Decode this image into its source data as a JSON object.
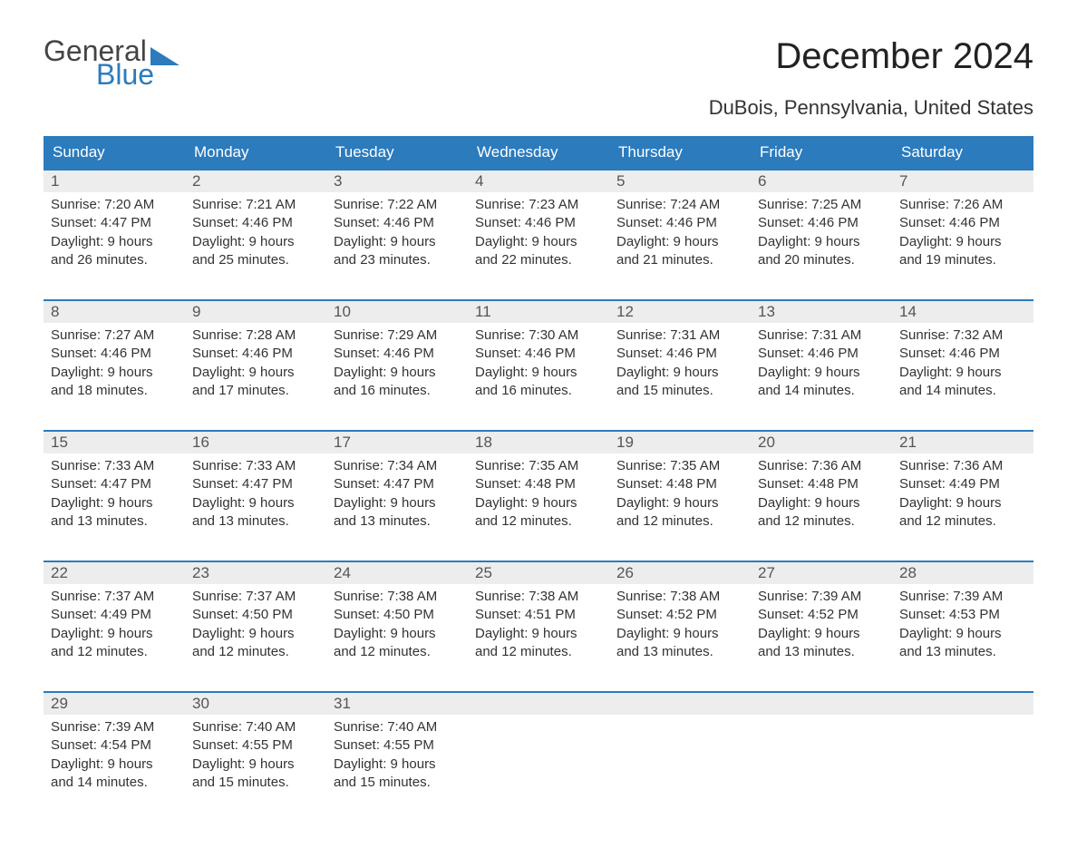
{
  "logo": {
    "text_general": "General",
    "text_blue": "Blue"
  },
  "title": "December 2024",
  "subtitle": "DuBois, Pennsylvania, United States",
  "colors": {
    "header_bg": "#2b7bbd",
    "header_text": "#ffffff",
    "daynum_bg": "#ededed",
    "divider": "#2b7bbd",
    "body_text": "#333333",
    "background": "#ffffff"
  },
  "days_of_week": [
    "Sunday",
    "Monday",
    "Tuesday",
    "Wednesday",
    "Thursday",
    "Friday",
    "Saturday"
  ],
  "weeks": [
    [
      {
        "num": "1",
        "sunrise": "Sunrise: 7:20 AM",
        "sunset": "Sunset: 4:47 PM",
        "daylight": "Daylight: 9 hours and 26 minutes."
      },
      {
        "num": "2",
        "sunrise": "Sunrise: 7:21 AM",
        "sunset": "Sunset: 4:46 PM",
        "daylight": "Daylight: 9 hours and 25 minutes."
      },
      {
        "num": "3",
        "sunrise": "Sunrise: 7:22 AM",
        "sunset": "Sunset: 4:46 PM",
        "daylight": "Daylight: 9 hours and 23 minutes."
      },
      {
        "num": "4",
        "sunrise": "Sunrise: 7:23 AM",
        "sunset": "Sunset: 4:46 PM",
        "daylight": "Daylight: 9 hours and 22 minutes."
      },
      {
        "num": "5",
        "sunrise": "Sunrise: 7:24 AM",
        "sunset": "Sunset: 4:46 PM",
        "daylight": "Daylight: 9 hours and 21 minutes."
      },
      {
        "num": "6",
        "sunrise": "Sunrise: 7:25 AM",
        "sunset": "Sunset: 4:46 PM",
        "daylight": "Daylight: 9 hours and 20 minutes."
      },
      {
        "num": "7",
        "sunrise": "Sunrise: 7:26 AM",
        "sunset": "Sunset: 4:46 PM",
        "daylight": "Daylight: 9 hours and 19 minutes."
      }
    ],
    [
      {
        "num": "8",
        "sunrise": "Sunrise: 7:27 AM",
        "sunset": "Sunset: 4:46 PM",
        "daylight": "Daylight: 9 hours and 18 minutes."
      },
      {
        "num": "9",
        "sunrise": "Sunrise: 7:28 AM",
        "sunset": "Sunset: 4:46 PM",
        "daylight": "Daylight: 9 hours and 17 minutes."
      },
      {
        "num": "10",
        "sunrise": "Sunrise: 7:29 AM",
        "sunset": "Sunset: 4:46 PM",
        "daylight": "Daylight: 9 hours and 16 minutes."
      },
      {
        "num": "11",
        "sunrise": "Sunrise: 7:30 AM",
        "sunset": "Sunset: 4:46 PM",
        "daylight": "Daylight: 9 hours and 16 minutes."
      },
      {
        "num": "12",
        "sunrise": "Sunrise: 7:31 AM",
        "sunset": "Sunset: 4:46 PM",
        "daylight": "Daylight: 9 hours and 15 minutes."
      },
      {
        "num": "13",
        "sunrise": "Sunrise: 7:31 AM",
        "sunset": "Sunset: 4:46 PM",
        "daylight": "Daylight: 9 hours and 14 minutes."
      },
      {
        "num": "14",
        "sunrise": "Sunrise: 7:32 AM",
        "sunset": "Sunset: 4:46 PM",
        "daylight": "Daylight: 9 hours and 14 minutes."
      }
    ],
    [
      {
        "num": "15",
        "sunrise": "Sunrise: 7:33 AM",
        "sunset": "Sunset: 4:47 PM",
        "daylight": "Daylight: 9 hours and 13 minutes."
      },
      {
        "num": "16",
        "sunrise": "Sunrise: 7:33 AM",
        "sunset": "Sunset: 4:47 PM",
        "daylight": "Daylight: 9 hours and 13 minutes."
      },
      {
        "num": "17",
        "sunrise": "Sunrise: 7:34 AM",
        "sunset": "Sunset: 4:47 PM",
        "daylight": "Daylight: 9 hours and 13 minutes."
      },
      {
        "num": "18",
        "sunrise": "Sunrise: 7:35 AM",
        "sunset": "Sunset: 4:48 PM",
        "daylight": "Daylight: 9 hours and 12 minutes."
      },
      {
        "num": "19",
        "sunrise": "Sunrise: 7:35 AM",
        "sunset": "Sunset: 4:48 PM",
        "daylight": "Daylight: 9 hours and 12 minutes."
      },
      {
        "num": "20",
        "sunrise": "Sunrise: 7:36 AM",
        "sunset": "Sunset: 4:48 PM",
        "daylight": "Daylight: 9 hours and 12 minutes."
      },
      {
        "num": "21",
        "sunrise": "Sunrise: 7:36 AM",
        "sunset": "Sunset: 4:49 PM",
        "daylight": "Daylight: 9 hours and 12 minutes."
      }
    ],
    [
      {
        "num": "22",
        "sunrise": "Sunrise: 7:37 AM",
        "sunset": "Sunset: 4:49 PM",
        "daylight": "Daylight: 9 hours and 12 minutes."
      },
      {
        "num": "23",
        "sunrise": "Sunrise: 7:37 AM",
        "sunset": "Sunset: 4:50 PM",
        "daylight": "Daylight: 9 hours and 12 minutes."
      },
      {
        "num": "24",
        "sunrise": "Sunrise: 7:38 AM",
        "sunset": "Sunset: 4:50 PM",
        "daylight": "Daylight: 9 hours and 12 minutes."
      },
      {
        "num": "25",
        "sunrise": "Sunrise: 7:38 AM",
        "sunset": "Sunset: 4:51 PM",
        "daylight": "Daylight: 9 hours and 12 minutes."
      },
      {
        "num": "26",
        "sunrise": "Sunrise: 7:38 AM",
        "sunset": "Sunset: 4:52 PM",
        "daylight": "Daylight: 9 hours and 13 minutes."
      },
      {
        "num": "27",
        "sunrise": "Sunrise: 7:39 AM",
        "sunset": "Sunset: 4:52 PM",
        "daylight": "Daylight: 9 hours and 13 minutes."
      },
      {
        "num": "28",
        "sunrise": "Sunrise: 7:39 AM",
        "sunset": "Sunset: 4:53 PM",
        "daylight": "Daylight: 9 hours and 13 minutes."
      }
    ],
    [
      {
        "num": "29",
        "sunrise": "Sunrise: 7:39 AM",
        "sunset": "Sunset: 4:54 PM",
        "daylight": "Daylight: 9 hours and 14 minutes."
      },
      {
        "num": "30",
        "sunrise": "Sunrise: 7:40 AM",
        "sunset": "Sunset: 4:55 PM",
        "daylight": "Daylight: 9 hours and 15 minutes."
      },
      {
        "num": "31",
        "sunrise": "Sunrise: 7:40 AM",
        "sunset": "Sunset: 4:55 PM",
        "daylight": "Daylight: 9 hours and 15 minutes."
      },
      {
        "num": "",
        "sunrise": "",
        "sunset": "",
        "daylight": ""
      },
      {
        "num": "",
        "sunrise": "",
        "sunset": "",
        "daylight": ""
      },
      {
        "num": "",
        "sunrise": "",
        "sunset": "",
        "daylight": ""
      },
      {
        "num": "",
        "sunrise": "",
        "sunset": "",
        "daylight": ""
      }
    ]
  ]
}
